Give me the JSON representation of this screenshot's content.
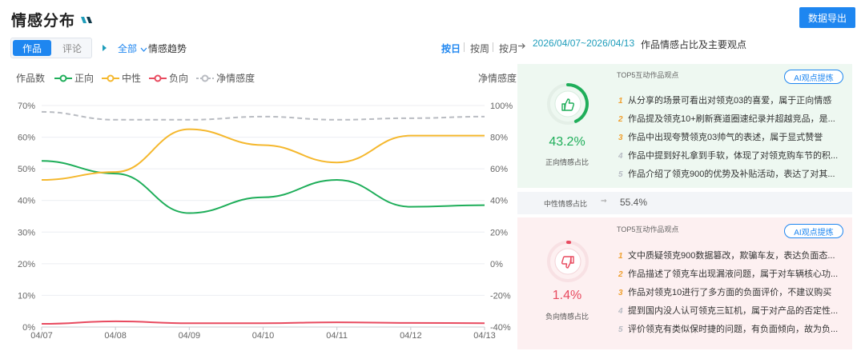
{
  "header": {
    "title": "情感分布",
    "export_label": "数据导出"
  },
  "controls": {
    "tabs": [
      {
        "label": "作品",
        "active": true
      },
      {
        "label": "评论",
        "active": false
      }
    ],
    "scope_label": "全部",
    "trend_label": "情感趋势",
    "periods": [
      {
        "label": "按日",
        "active": true
      },
      {
        "label": "按周",
        "active": false
      },
      {
        "label": "按月",
        "active": false
      }
    ],
    "date_range": "2026/04/07~2026/04/13",
    "date_caption": "作品情感占比及主要观点"
  },
  "legend": {
    "left_axis_title": "作品数",
    "right_axis_title": "净情感度",
    "items": [
      {
        "label": "正向",
        "color": "#1fae5a"
      },
      {
        "label": "中性",
        "color": "#f5b82e"
      },
      {
        "label": "负向",
        "color": "#e84a5f"
      },
      {
        "label": "净情感度",
        "color": "#b9bcc2"
      }
    ]
  },
  "chart_data": {
    "type": "line",
    "categories": [
      "04/07",
      "04/08",
      "04/09",
      "04/10",
      "04/11",
      "04/12",
      "04/13"
    ],
    "y_left_ticks": [
      "70%",
      "60%",
      "50%",
      "40%",
      "30%",
      "20%",
      "10%",
      "0%"
    ],
    "y_right_ticks": [
      "100%",
      "80%",
      "60%",
      "40%",
      "20%",
      "0%",
      "-20%",
      "-40%"
    ],
    "ylim_left": [
      0,
      70
    ],
    "ylim_right": [
      -40,
      100
    ],
    "series": [
      {
        "name": "正向",
        "axis": "left",
        "color": "#1fae5a",
        "values": [
          52.5,
          48.5,
          36,
          41,
          46.5,
          38,
          38.5
        ]
      },
      {
        "name": "中性",
        "axis": "left",
        "color": "#f5b82e",
        "values": [
          46.5,
          49,
          62.5,
          57.5,
          52,
          60.5,
          60.5
        ]
      },
      {
        "name": "负向",
        "axis": "left",
        "color": "#e84a5f",
        "values": [
          1,
          1.8,
          1.2,
          1.2,
          1.5,
          1.3,
          1.2
        ]
      },
      {
        "name": "净情感度",
        "axis": "right",
        "color": "#b9bcc2",
        "dashed": true,
        "values": [
          96,
          91,
          91,
          93,
          91,
          92,
          93
        ]
      }
    ],
    "grid": true
  },
  "positive": {
    "percent": "43.2%",
    "label": "正向情感占比",
    "ratio": 0.432,
    "color": "#1fae5a",
    "top5_title": "TOP5互动作品观点",
    "ai_label": "AI观点提炼",
    "opinions": [
      {
        "rank": "1",
        "text": "从分享的场景可看出对领克03的喜爱，属于正向情感"
      },
      {
        "rank": "2",
        "text": "作品提及领克10+刷新赛道圈速纪录并超越竞品，是..."
      },
      {
        "rank": "3",
        "text": "作品中出现夸赞领克03帅气的表述，属于显式赞誉"
      },
      {
        "rank": "4",
        "text": "作品中提到好礼拿到手软，体现了对领克购车节的积..."
      },
      {
        "rank": "5",
        "text": "作品介绍了领克900的优势及补贴活动，表达了对其..."
      }
    ]
  },
  "neutral": {
    "label": "中性情感占比",
    "percent": "55.4%"
  },
  "negative": {
    "percent": "1.4%",
    "label": "负向情感占比",
    "ratio": 0.014,
    "color": "#e84a5f",
    "top5_title": "TOP5互动作品观点",
    "ai_label": "AI观点提炼",
    "opinions": [
      {
        "rank": "1",
        "text": "文中质疑领克900数据篡改，欺骗车友，表达负面态..."
      },
      {
        "rank": "2",
        "text": "作品描述了领克车出现漏液问题，属于对车辆核心功..."
      },
      {
        "rank": "3",
        "text": "作品对领克10进行了多方面的负面评价，不建议购买"
      },
      {
        "rank": "4",
        "text": "提到国内没人认可领克三缸机，属于对产品的否定性..."
      },
      {
        "rank": "5",
        "text": "评价领克有类似保时捷的问题，有负面倾向，故为负..."
      }
    ]
  },
  "rank_colors": [
    "#f0a030",
    "#f0a030",
    "#f0a030",
    "#b8bcc4",
    "#b8bcc4"
  ]
}
